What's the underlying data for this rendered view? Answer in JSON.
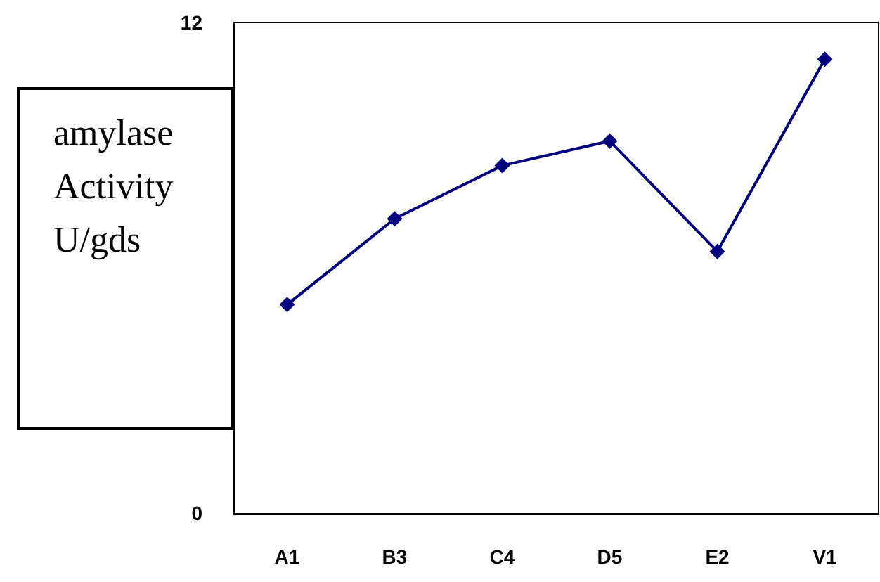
{
  "chart_data": {
    "type": "line",
    "ylabel": "amylase Activity U/gds",
    "categories": [
      "A1",
      "B3",
      "C4",
      "D5",
      "E2",
      "V1"
    ],
    "series": [
      {
        "color": "#000080",
        "values": [
          5.1,
          7.2,
          8.5,
          9.1,
          6.4,
          11.1
        ]
      }
    ],
    "ylim": [
      0,
      12
    ],
    "yticks": [
      0,
      12
    ],
    "grid": false,
    "marker": "diamond",
    "line_style": "solid"
  }
}
